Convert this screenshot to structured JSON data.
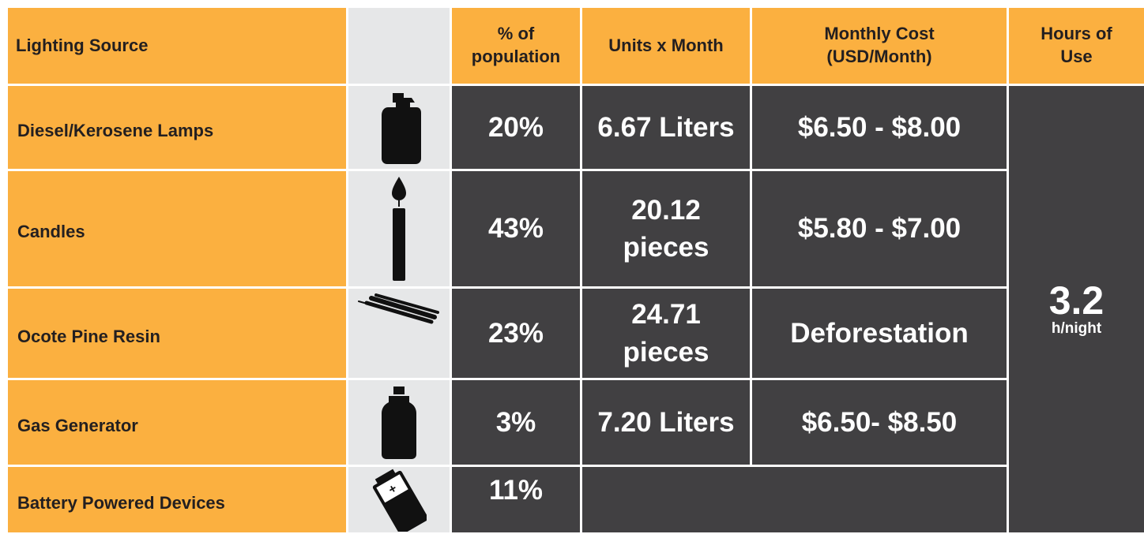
{
  "table": {
    "header": [
      "Lighting Source",
      "% of population",
      "Units x Month",
      "Monthly Cost (USD/Month)",
      "Hours of Use"
    ],
    "rows": [
      [
        "Diesel/Kerosene Lamps",
        "20%",
        "6.67 Liters",
        "$6.50 - $8.00"
      ],
      [
        "Candles",
        "43%",
        "20.12 pieces",
        "$5.80 - $7.00"
      ],
      [
        "Ocote Pine Resin",
        "23%",
        "24.71 pieces",
        "Deforestation"
      ],
      [
        "Gas Generator",
        "3%",
        "7.20 Liters",
        "$6.50- $8.50"
      ],
      [
        "Battery Powered Devices",
        "11%"
      ]
    ],
    "hours": {
      "value": "3.2",
      "unit": "h/night"
    }
  }
}
